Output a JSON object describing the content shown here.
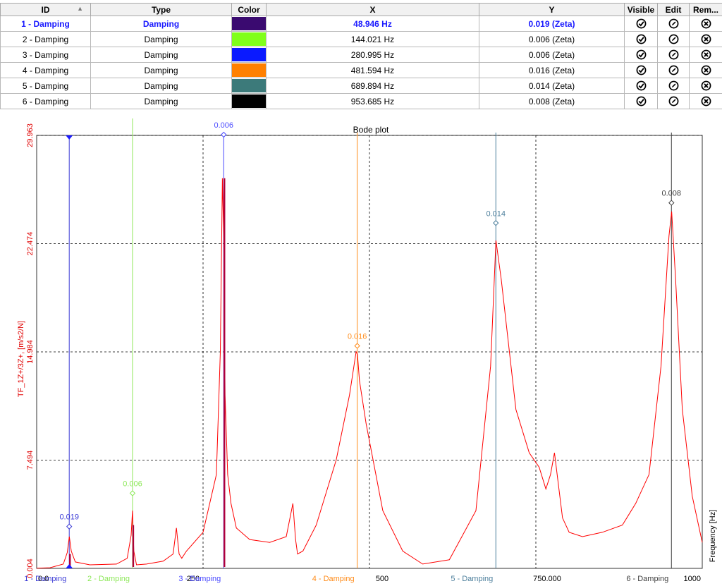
{
  "table": {
    "headers": {
      "id": "ID",
      "type": "Type",
      "color": "Color",
      "x": "X",
      "y": "Y",
      "visible": "Visible",
      "edit": "Edit",
      "remove": "Rem..."
    },
    "sort_icon": "sort-ascending-icon",
    "rows": [
      {
        "id": "1 - Damping",
        "type": "Damping",
        "color": "#3a0a70",
        "x": "48.946 Hz",
        "y": "0.019 (Zeta)",
        "selected": true
      },
      {
        "id": "2 - Damping",
        "type": "Damping",
        "color": "#80ff1a",
        "x": "144.021 Hz",
        "y": "0.006 (Zeta)",
        "selected": false
      },
      {
        "id": "3 - Damping",
        "type": "Damping",
        "color": "#0a1aff",
        "x": "280.995 Hz",
        "y": "0.006 (Zeta)",
        "selected": false
      },
      {
        "id": "4 - Damping",
        "type": "Damping",
        "color": "#ff8000",
        "x": "481.594 Hz",
        "y": "0.016 (Zeta)",
        "selected": false
      },
      {
        "id": "5 - Damping",
        "type": "Damping",
        "color": "#3c7a7a",
        "x": "689.894 Hz",
        "y": "0.014 (Zeta)",
        "selected": false
      },
      {
        "id": "6 - Damping",
        "type": "Damping",
        "color": "#000000",
        "x": "953.685 Hz",
        "y": "0.008 (Zeta)",
        "selected": false
      }
    ]
  },
  "chart_data": {
    "type": "line",
    "title": "Bode plot",
    "xlabel": "Frequency [Hz]",
    "ylabel": "TF_1Z+/3Z+, [m/s2/N]",
    "xlim": [
      0,
      1000
    ],
    "ylim": [
      0.004,
      29.963
    ],
    "y_ticks": [
      "0.004",
      "7.494",
      "14.984",
      "22.474",
      "29.963"
    ],
    "x_ticks": [
      "0.0",
      "250",
      "500",
      "750.000",
      "1000"
    ],
    "grid": true,
    "series_color": "#ff0000",
    "series": [
      {
        "x": [
          0,
          20,
          40,
          46,
          49,
          52,
          58,
          80,
          120,
          136,
          142,
          144,
          146,
          150,
          165,
          190,
          205,
          210,
          214,
          218,
          225,
          250,
          270,
          276,
          279,
          281,
          283,
          287,
          292,
          300,
          320,
          350,
          375,
          385,
          389,
          392,
          400,
          420,
          450,
          470,
          480,
          482,
          485,
          495,
          520,
          550,
          580,
          620,
          660,
          682,
          690,
          698,
          720,
          740,
          755,
          765,
          772,
          778,
          782,
          790,
          800,
          820,
          850,
          880,
          900,
          920,
          938,
          950,
          954,
          960,
          970,
          985,
          1000
        ],
        "y": [
          0.02,
          0.05,
          0.3,
          1.1,
          2.2,
          1.2,
          0.45,
          0.25,
          0.3,
          0.7,
          2.3,
          4.0,
          1.2,
          0.25,
          0.3,
          0.5,
          1.0,
          2.8,
          1.0,
          0.7,
          1.2,
          2.5,
          6.5,
          15,
          27,
          23,
          12,
          6.5,
          4.5,
          2.8,
          2.0,
          1.8,
          2.2,
          4.5,
          2.0,
          1.0,
          1.2,
          3.0,
          7.5,
          12,
          15.0,
          14.8,
          13,
          10,
          4.0,
          1.2,
          0.3,
          0.6,
          4.0,
          14,
          22.7,
          20,
          11,
          8,
          7,
          5.5,
          6.5,
          8.0,
          6.5,
          3.5,
          2.5,
          2.2,
          2.5,
          3.0,
          4.5,
          6.5,
          14,
          23,
          24.7,
          20,
          11,
          5,
          1.8
        ]
      }
    ],
    "cursors": [
      {
        "label": "1 - Damping",
        "x": 48.946,
        "value_label": "0.019",
        "color": "#3b3bd6",
        "marker_y": 2.9
      },
      {
        "label": "2 - Damping",
        "x": 144.021,
        "value_label": "0.006",
        "color": "#8ee85a",
        "marker_y": 5.2
      },
      {
        "label": "3 - Damping",
        "x": 280.995,
        "value_label": "0.006",
        "color": "#4a4aff",
        "marker_y": 30.3
      },
      {
        "label": "4 - Damping",
        "x": 481.594,
        "value_label": "0.016",
        "color": "#ff8c1a",
        "marker_y": 15.4
      },
      {
        "label": "5 - Damping",
        "x": 689.894,
        "value_label": "0.014",
        "color": "#4d7f9c",
        "marker_y": 23.9
      },
      {
        "label": "6 - Damping",
        "x": 953.685,
        "value_label": "0.008",
        "color": "#404040",
        "marker_y": 25.3
      }
    ]
  }
}
